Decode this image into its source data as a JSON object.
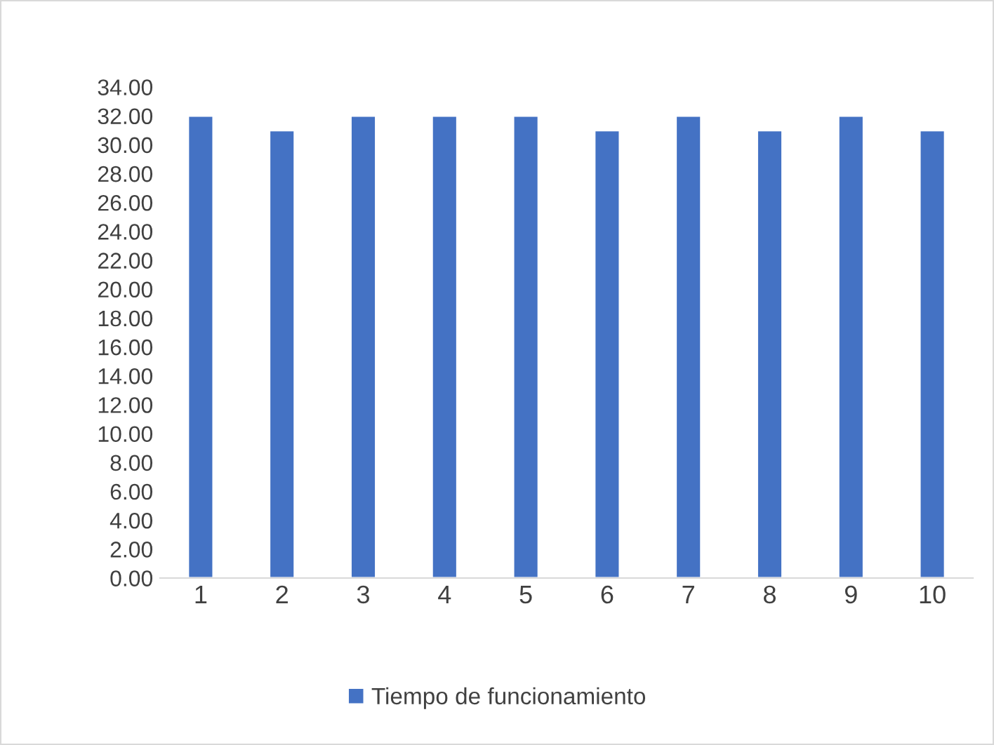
{
  "chart_data": {
    "type": "bar",
    "categories": [
      "1",
      "2",
      "3",
      "4",
      "5",
      "6",
      "7",
      "8",
      "9",
      "10"
    ],
    "series": [
      {
        "name": "Tiempo de funcionamiento",
        "color": "#4472c4",
        "values": [
          32,
          31,
          32,
          32,
          32,
          31,
          32,
          31,
          32,
          31
        ]
      }
    ],
    "ylim": [
      0,
      34
    ],
    "yticks": [
      {
        "value": 0,
        "label": "0.00"
      },
      {
        "value": 2,
        "label": "2.00"
      },
      {
        "value": 4,
        "label": "4.00"
      },
      {
        "value": 6,
        "label": "6.00"
      },
      {
        "value": 8,
        "label": "8.00"
      },
      {
        "value": 10,
        "label": "10.00"
      },
      {
        "value": 12,
        "label": "12.00"
      },
      {
        "value": 14,
        "label": "14.00"
      },
      {
        "value": 16,
        "label": "16.00"
      },
      {
        "value": 18,
        "label": "18.00"
      },
      {
        "value": 20,
        "label": "20.00"
      },
      {
        "value": 22,
        "label": "22.00"
      },
      {
        "value": 24,
        "label": "24.00"
      },
      {
        "value": 26,
        "label": "26.00"
      },
      {
        "value": 28,
        "label": "28.00"
      },
      {
        "value": 30,
        "label": "30.00"
      },
      {
        "value": 32,
        "label": "32.00"
      },
      {
        "value": 34,
        "label": "34.00"
      }
    ],
    "grid": false,
    "legend": "bottom"
  }
}
